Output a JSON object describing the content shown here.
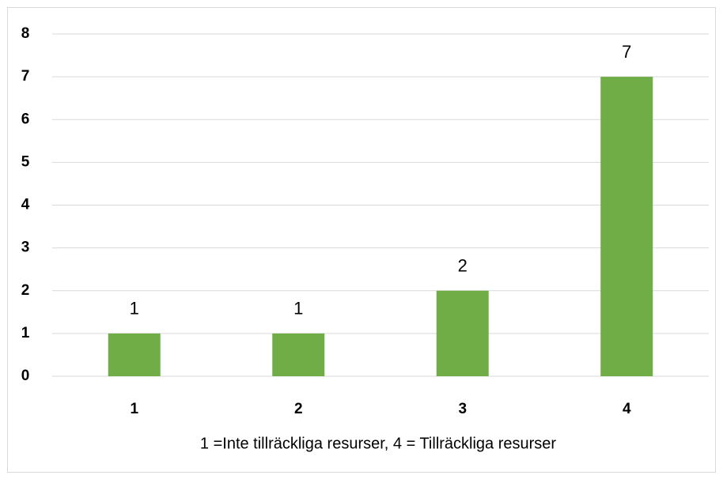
{
  "chart_data": {
    "type": "bar",
    "categories": [
      "1",
      "2",
      "3",
      "4"
    ],
    "values": [
      1,
      1,
      2,
      7
    ],
    "color": "#70ad47",
    "xlabel": "1 =Inte tillräckliga resurser,  4 = Tillräckliga resurser",
    "ylim": [
      0,
      8
    ],
    "yticks": [
      0,
      1,
      2,
      3,
      4,
      5,
      6,
      7,
      8
    ],
    "grid": true
  }
}
